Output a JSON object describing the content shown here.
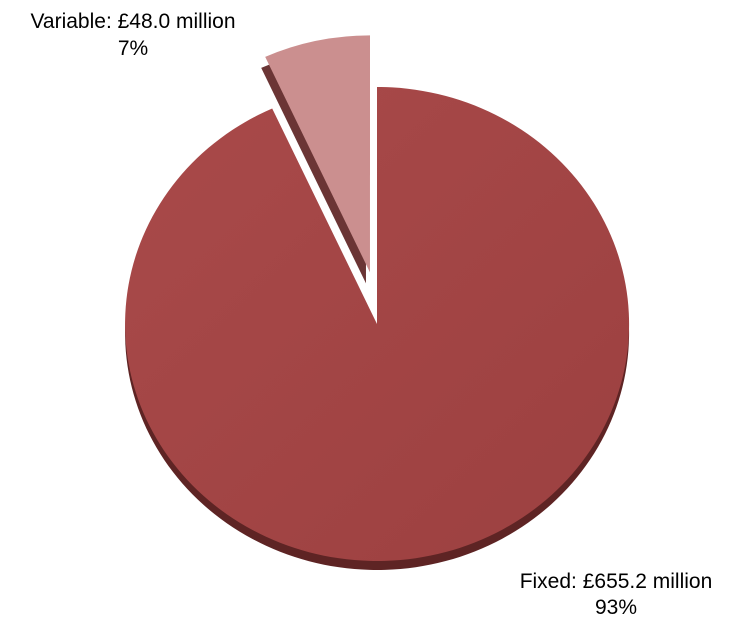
{
  "chart_data": {
    "type": "pie",
    "title": "",
    "slices": [
      {
        "name": "Variable",
        "value": 48.0,
        "label": "Variable: £48.0 million",
        "percent_label": "7%",
        "color": "#cb8f8f",
        "exploded": true
      },
      {
        "name": "Fixed",
        "value": 655.2,
        "label": "Fixed: £655.2 million",
        "percent_label": "93%",
        "color": "#a34545",
        "exploded": false
      }
    ],
    "legend": "none",
    "start_angle": "12 o'clock, clockwise"
  }
}
